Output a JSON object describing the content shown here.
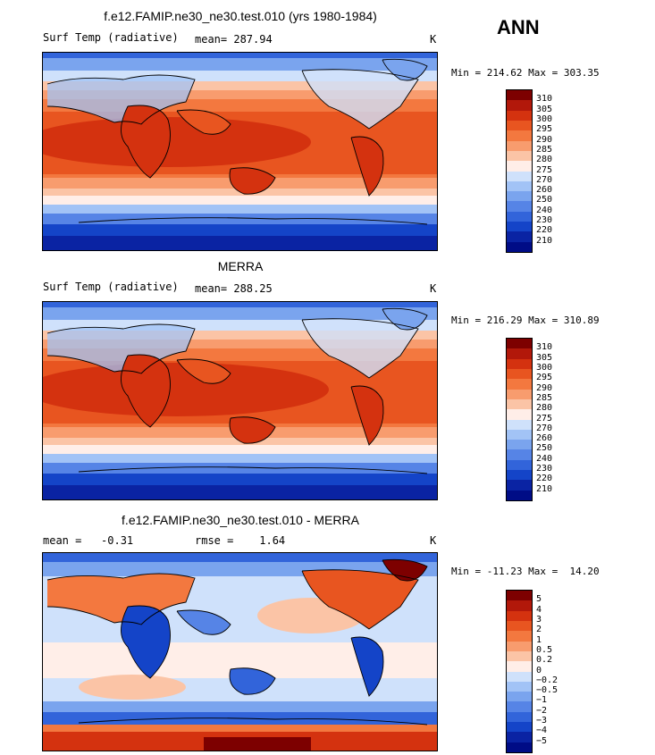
{
  "annual_label": "ANN",
  "panels": [
    {
      "id": "model",
      "title": "f.e12.FAMIP.ne30_ne30.test.010 (yrs 1980-1984)",
      "left_label": "Surf Temp (radiative)",
      "center_label": "mean= 287.94",
      "unit": "K",
      "minmax": "Min = 214.62 Max = 303.35",
      "colorbar": {
        "colors": [
          "#7d0000",
          "#b2180a",
          "#d4320f",
          "#e85520",
          "#f3783f",
          "#f89c6e",
          "#fbc4a6",
          "#ffeee8",
          "#cfe1fb",
          "#a2c3f6",
          "#7aa4ee",
          "#5684e6",
          "#3264da",
          "#1444c8",
          "#0a23a3",
          "#000c86"
        ],
        "labels": [
          "310",
          "305",
          "300",
          "295",
          "290",
          "285",
          "280",
          "275",
          "270",
          "260",
          "250",
          "240",
          "230",
          "220",
          "210"
        ]
      }
    },
    {
      "id": "obs",
      "title": "MERRA",
      "left_label": "Surf Temp (radiative)",
      "center_label": "mean= 288.25",
      "unit": "K",
      "minmax": "Min = 216.29 Max = 310.89",
      "colorbar": {
        "colors": [
          "#7d0000",
          "#b2180a",
          "#d4320f",
          "#e85520",
          "#f3783f",
          "#f89c6e",
          "#fbc4a6",
          "#ffeee8",
          "#cfe1fb",
          "#a2c3f6",
          "#7aa4ee",
          "#5684e6",
          "#3264da",
          "#1444c8",
          "#0a23a3",
          "#000c86"
        ],
        "labels": [
          "310",
          "305",
          "300",
          "295",
          "290",
          "285",
          "280",
          "275",
          "270",
          "260",
          "250",
          "240",
          "230",
          "220",
          "210"
        ]
      }
    },
    {
      "id": "diff",
      "title": "f.e12.FAMIP.ne30_ne30.test.010 - MERRA",
      "left_label": "mean =   -0.31",
      "center_label": "rmse =    1.64",
      "unit": "K",
      "minmax": "Min = -11.23 Max =  14.20",
      "colorbar": {
        "colors": [
          "#7d0000",
          "#b2180a",
          "#d4320f",
          "#e85520",
          "#f3783f",
          "#f89c6e",
          "#fbc4a6",
          "#ffeee8",
          "#cfe1fb",
          "#a2c3f6",
          "#7aa4ee",
          "#5684e6",
          "#3264da",
          "#1444c8",
          "#0a23a3",
          "#000c86"
        ],
        "labels": [
          "5",
          "4",
          "3",
          "2",
          "1",
          "0.5",
          "0.2",
          "0",
          "−0.2",
          "−0.5",
          "−1",
          "−2",
          "−3",
          "−4",
          "−5"
        ]
      }
    }
  ]
}
